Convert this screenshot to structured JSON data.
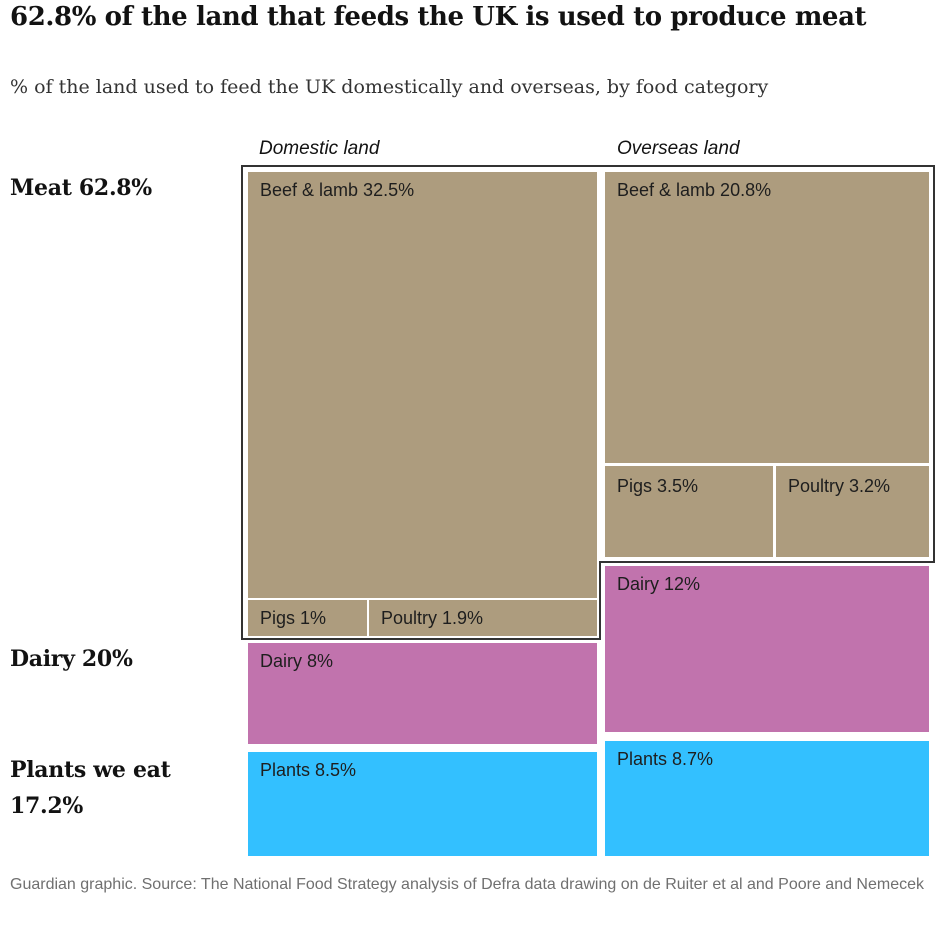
{
  "header": {
    "title": "62.8% of the land that feeds the UK is used to produce meat",
    "subtitle": "% of the land used to feed the UK domestically and overseas, by food category"
  },
  "columns": {
    "domestic": "Domestic land",
    "overseas": "Overseas land"
  },
  "groups": {
    "meat": "Meat 62.8%",
    "dairy": "Dairy 20%",
    "plants": "Plants we eat 17.2%"
  },
  "tiles": {
    "dom_beef": "Beef & lamb 32.5%",
    "dom_pigs": "Pigs 1%",
    "dom_poultry": "Poultry 1.9%",
    "dom_dairy": "Dairy 8%",
    "dom_plants": "Plants 8.5%",
    "ovs_beef": "Beef & lamb 20.8%",
    "ovs_pigs": "Pigs 3.5%",
    "ovs_poultry": "Poultry 3.2%",
    "ovs_dairy": "Dairy 12%",
    "ovs_plants": "Plants 8.7%"
  },
  "colors": {
    "meat": "#ad9c7e",
    "dairy": "#c173ad",
    "plants": "#33c0ff"
  },
  "footer": {
    "source": "Guardian graphic. Source: The National Food Strategy analysis of Defra data drawing on de Ruiter et al and Poore and Nemecek"
  },
  "chart_data": {
    "type": "treemap",
    "title": "62.8% of the land that feeds the UK is used to produce meat",
    "subtitle": "% of the land used to feed the UK domestically and overseas, by food category",
    "unit": "%",
    "series": [
      {
        "name": "Domestic land",
        "items": [
          {
            "category": "Meat",
            "label": "Beef & lamb",
            "value": 32.5
          },
          {
            "category": "Meat",
            "label": "Pigs",
            "value": 1
          },
          {
            "category": "Meat",
            "label": "Poultry",
            "value": 1.9
          },
          {
            "category": "Dairy",
            "label": "Dairy",
            "value": 8
          },
          {
            "category": "Plants we eat",
            "label": "Plants",
            "value": 8.5
          }
        ]
      },
      {
        "name": "Overseas land",
        "items": [
          {
            "category": "Meat",
            "label": "Beef & lamb",
            "value": 20.8
          },
          {
            "category": "Meat",
            "label": "Pigs",
            "value": 3.5
          },
          {
            "category": "Meat",
            "label": "Poultry",
            "value": 3.2
          },
          {
            "category": "Dairy",
            "label": "Dairy",
            "value": 12
          },
          {
            "category": "Plants we eat",
            "label": "Plants",
            "value": 8.7
          }
        ]
      }
    ],
    "category_totals": [
      {
        "name": "Meat",
        "value": 62.8
      },
      {
        "name": "Dairy",
        "value": 20
      },
      {
        "name": "Plants we eat",
        "value": 17.2
      }
    ]
  }
}
